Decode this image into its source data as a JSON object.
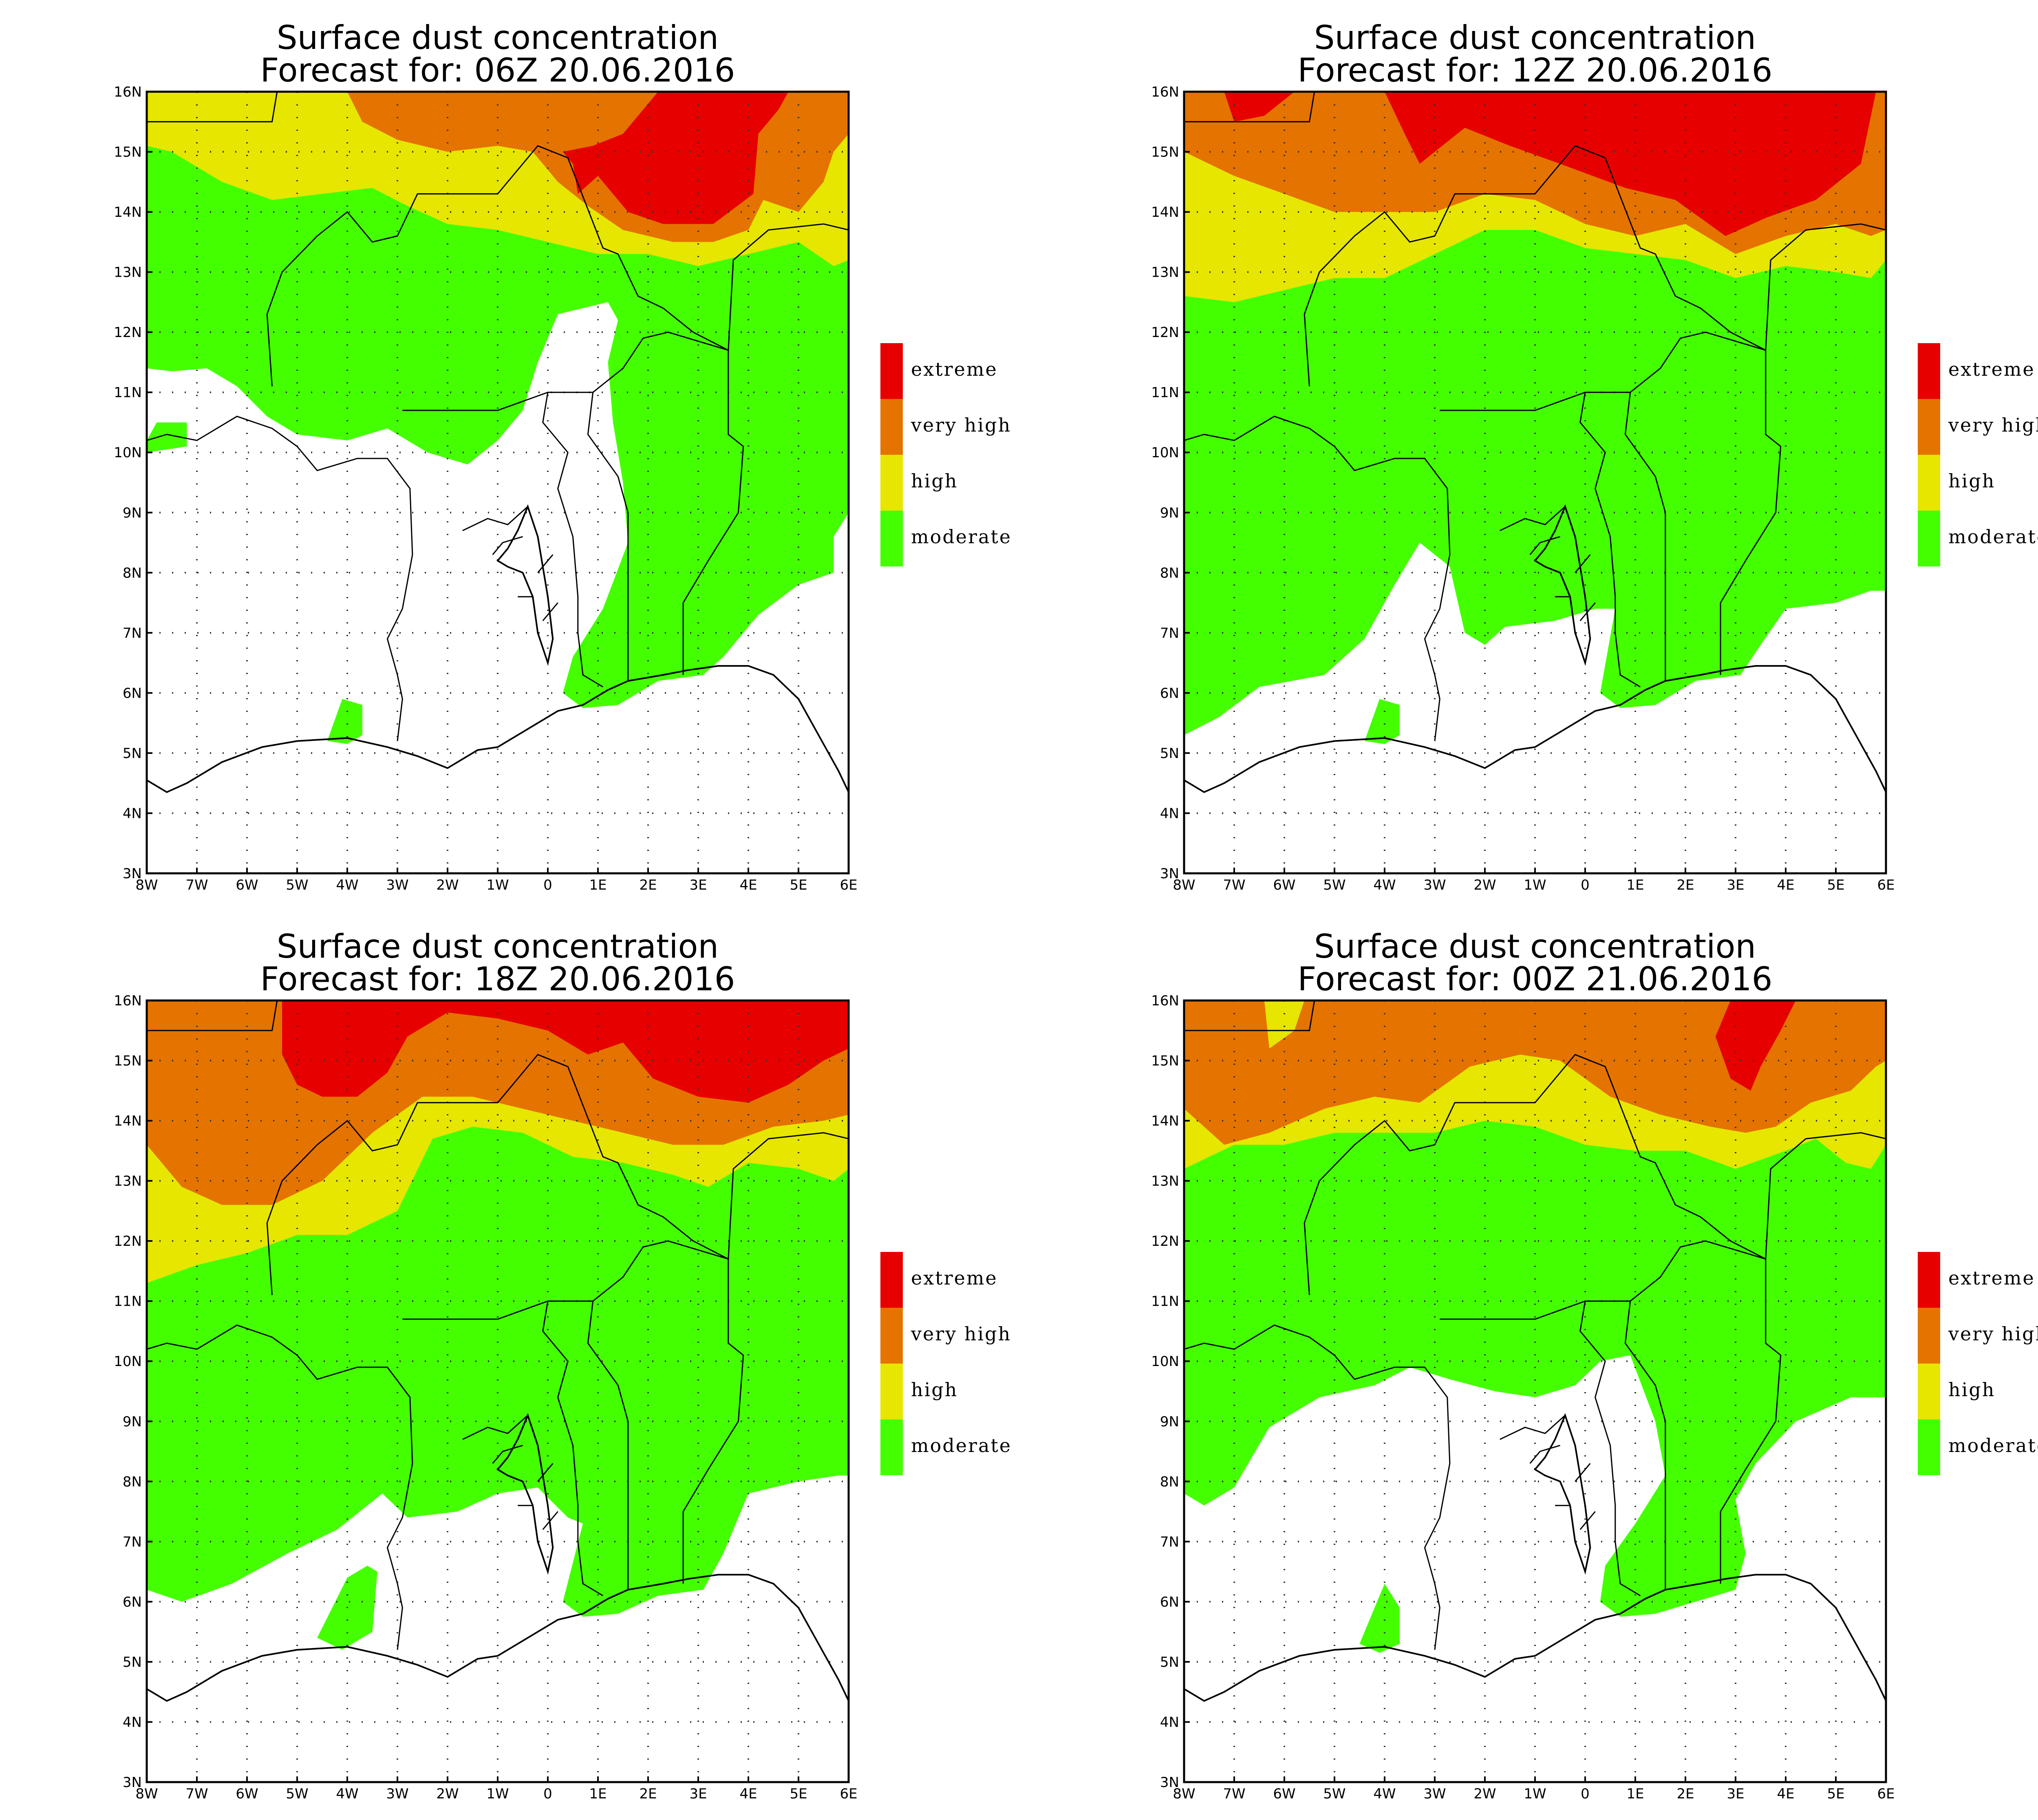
{
  "figure": {
    "panels": [
      {
        "title": "Surface dust concentration",
        "subtitle": "Forecast for: 06Z 20.06.2016",
        "scenario": "p1"
      },
      {
        "title": "Surface dust concentration",
        "subtitle": "Forecast for: 12Z 20.06.2016",
        "scenario": "p2"
      },
      {
        "title": "Surface dust concentration",
        "subtitle": "Forecast for: 18Z 20.06.2016",
        "scenario": "p3"
      },
      {
        "title": "Surface dust concentration",
        "subtitle": "Forecast for: 00Z 21.06.2016",
        "scenario": "p4"
      }
    ],
    "x_ticks": [
      "8W",
      "7W",
      "6W",
      "5W",
      "4W",
      "3W",
      "2W",
      "1W",
      "0",
      "1E",
      "2E",
      "3E",
      "4E",
      "5E",
      "6E"
    ],
    "y_ticks": [
      "3N",
      "4N",
      "5N",
      "6N",
      "7N",
      "8N",
      "9N",
      "10N",
      "11N",
      "12N",
      "13N",
      "14N",
      "15N",
      "16N"
    ],
    "lon_range": [
      -8,
      6
    ],
    "lat_range": [
      3,
      16
    ],
    "legend": [
      {
        "label": "extreme",
        "color": "#e60000"
      },
      {
        "label": "very high",
        "color": "#e57300"
      },
      {
        "label": "high",
        "color": "#e6e600"
      },
      {
        "label": "moderate",
        "color": "#44ff00"
      }
    ]
  }
}
